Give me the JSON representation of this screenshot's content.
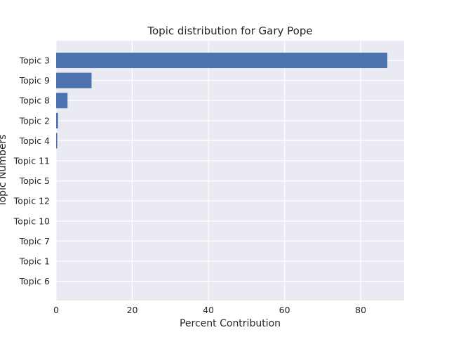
{
  "chart_data": {
    "type": "bar",
    "orientation": "horizontal",
    "title": "Topic distribution for Gary Pope",
    "xlabel": "Percent Contribution",
    "ylabel": "Topic Numbers",
    "categories": [
      "Topic 3",
      "Topic 9",
      "Topic 8",
      "Topic 2",
      "Topic 4",
      "Topic 11",
      "Topic 5",
      "Topic 12",
      "Topic 10",
      "Topic 7",
      "Topic 1",
      "Topic 6"
    ],
    "values": [
      87.0,
      9.3,
      3.0,
      0.5,
      0.3,
      0.0,
      0.0,
      0.0,
      0.0,
      0.0,
      0.0,
      0.0
    ],
    "xlim": [
      0,
      91.4
    ],
    "xticks": [
      0,
      20,
      40,
      60,
      80
    ],
    "grid": true,
    "colors": {
      "bar": "#4c72b0",
      "background": "#eaeaf2",
      "grid": "#ffffff"
    }
  }
}
